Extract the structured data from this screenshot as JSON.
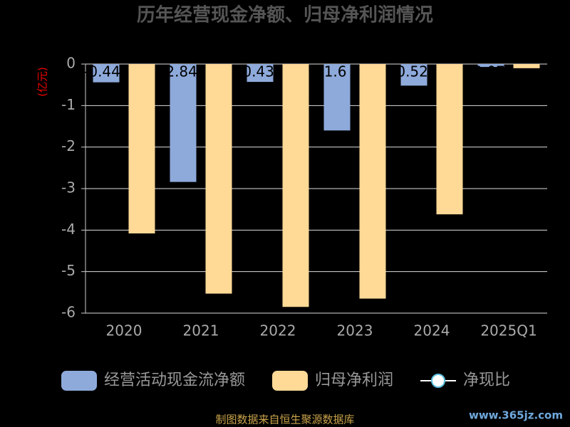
{
  "chart_data": {
    "type": "bar",
    "title": "历年经营现金净额、归母净利润情况",
    "y_label": "(亿元)",
    "categories": [
      "2020",
      "2021",
      "2022",
      "2023",
      "2024",
      "2025Q1"
    ],
    "series": [
      {
        "name": "经营活动现金流净额",
        "color": "#8eaadb",
        "values": [
          -0.44,
          -2.84,
          -0.43,
          -1.6,
          -0.52,
          -0.07
        ]
      },
      {
        "name": "归母净利润",
        "color": "#ffd996",
        "values": [
          -4.08,
          -5.53,
          -5.85,
          -5.65,
          -3.62,
          -0.1
        ]
      },
      {
        "name": "净现比",
        "color": "#5bc0de",
        "type": "line",
        "values": [
          null,
          null,
          null,
          null,
          null,
          null
        ]
      }
    ],
    "ylim": [
      -6,
      0
    ],
    "yticks": [
      0,
      -1,
      -2,
      -3,
      -4,
      -5,
      -6
    ],
    "grid": true,
    "source": "制图数据来自恒生聚源数据库",
    "watermark": "www.365jz.com"
  }
}
